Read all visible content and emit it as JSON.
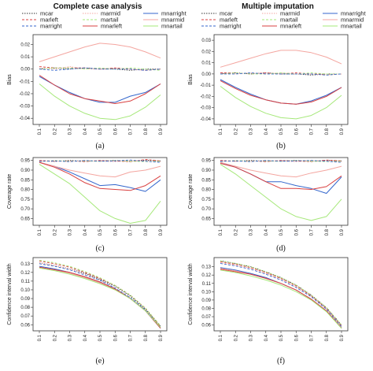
{
  "titles": [
    "Complete case analysis",
    "Multiple imputation"
  ],
  "legend": [
    {
      "name": "mcar",
      "color": "#333333",
      "dash": "1.5,1.5",
      "width": 0.9
    },
    {
      "name": "marmid",
      "color": "#f4a6a0",
      "dash": "1.5,1.5",
      "width": 0.9
    },
    {
      "name": "mnarright",
      "color": "#3366cc",
      "dash": "",
      "width": 1.0
    },
    {
      "name": "marleft",
      "color": "#d94040",
      "dash": "3,2",
      "width": 0.9
    },
    {
      "name": "martail",
      "color": "#a6e87a",
      "dash": "3,2",
      "width": 0.9
    },
    {
      "name": "mnarmid",
      "color": "#f4a6a0",
      "dash": "",
      "width": 1.0
    },
    {
      "name": "marright",
      "color": "#3366cc",
      "dash": "3,2",
      "width": 0.9
    },
    {
      "name": "mnarleft",
      "color": "#d94040",
      "dash": "",
      "width": 1.0
    },
    {
      "name": "mnartail",
      "color": "#a6e87a",
      "dash": "",
      "width": 1.0
    }
  ],
  "chart_data": [
    {
      "panel": "(a)",
      "type": "line",
      "ylabel": "Bias",
      "x": [
        0.1,
        0.2,
        0.3,
        0.4,
        0.5,
        0.6,
        0.7,
        0.8,
        0.9
      ],
      "xticks": [
        "0.1",
        "0.2",
        "0.3",
        "0.4",
        "0.5",
        "0.6",
        "0.7",
        "0.8",
        "0.9"
      ],
      "ylim": [
        -0.045,
        0.028
      ],
      "yticks": [
        "0.02",
        "0.01",
        "0.00",
        "-0.01",
        "-0.02",
        "-0.03",
        "-0.04"
      ],
      "series": [
        {
          "name": "mcar",
          "values": [
            0.0,
            0.001,
            0.0,
            0.001,
            0.0,
            0.0,
            -0.001,
            0.0,
            0.0
          ]
        },
        {
          "name": "marmid",
          "values": [
            0.001,
            0.0,
            0.002,
            0.0,
            0.0,
            0.001,
            0.0,
            -0.001,
            0.0
          ]
        },
        {
          "name": "mnarright",
          "values": [
            -0.006,
            -0.013,
            -0.019,
            -0.024,
            -0.027,
            -0.027,
            -0.022,
            -0.019,
            -0.012
          ]
        },
        {
          "name": "marleft",
          "values": [
            0.002,
            0.001,
            0.001,
            0.001,
            0.0,
            0.001,
            0.0,
            -0.001,
            0.0
          ]
        },
        {
          "name": "martail",
          "values": [
            0.0,
            0.001,
            0.001,
            0.0,
            0.001,
            0.0,
            0.001,
            0.0,
            -0.001
          ]
        },
        {
          "name": "mnarmid",
          "values": [
            0.006,
            0.01,
            0.014,
            0.018,
            0.021,
            0.02,
            0.018,
            0.014,
            0.009
          ]
        },
        {
          "name": "marright",
          "values": [
            0.0,
            -0.001,
            0.0,
            0.001,
            0.0,
            0.0,
            0.0,
            -0.001,
            0.0
          ]
        },
        {
          "name": "mnarleft",
          "values": [
            -0.005,
            -0.013,
            -0.02,
            -0.024,
            -0.026,
            -0.028,
            -0.026,
            -0.02,
            -0.012
          ]
        },
        {
          "name": "mnartail",
          "values": [
            -0.012,
            -0.022,
            -0.03,
            -0.036,
            -0.04,
            -0.041,
            -0.038,
            -0.031,
            -0.021
          ]
        }
      ]
    },
    {
      "panel": "(b)",
      "type": "line",
      "ylabel": "Bias",
      "x": [
        0.1,
        0.2,
        0.3,
        0.4,
        0.5,
        0.6,
        0.7,
        0.8,
        0.9
      ],
      "xticks": [
        "0.1",
        "0.2",
        "0.3",
        "0.4",
        "0.5",
        "0.6",
        "0.7",
        "0.8",
        "0.9"
      ],
      "ylim": [
        -0.045,
        0.035
      ],
      "yticks": [
        "0.03",
        "0.02",
        "0.01",
        "0.00",
        "-0.01",
        "-0.02",
        "-0.03",
        "-0.04"
      ],
      "series": [
        {
          "name": "mcar",
          "values": [
            0.0,
            0.001,
            0.0,
            0.001,
            0.0,
            0.0,
            -0.001,
            0.0,
            0.0
          ]
        },
        {
          "name": "marmid",
          "values": [
            0.001,
            0.0,
            0.001,
            0.0,
            0.001,
            0.0,
            0.0,
            -0.001,
            0.0
          ]
        },
        {
          "name": "mnarright",
          "values": [
            -0.005,
            -0.012,
            -0.018,
            -0.023,
            -0.026,
            -0.027,
            -0.024,
            -0.019,
            -0.012
          ]
        },
        {
          "name": "marleft",
          "values": [
            0.001,
            0.001,
            0.0,
            0.001,
            0.0,
            0.001,
            0.0,
            0.0,
            0.0
          ]
        },
        {
          "name": "martail",
          "values": [
            0.0,
            0.001,
            0.0,
            0.0,
            0.001,
            0.0,
            0.001,
            0.0,
            0.0
          ]
        },
        {
          "name": "mnarmid",
          "values": [
            0.006,
            0.01,
            0.014,
            0.018,
            0.021,
            0.021,
            0.019,
            0.015,
            0.009
          ]
        },
        {
          "name": "marright",
          "values": [
            0.0,
            0.0,
            0.001,
            0.0,
            0.0,
            0.0,
            0.0,
            -0.001,
            0.0
          ]
        },
        {
          "name": "mnarleft",
          "values": [
            -0.006,
            -0.013,
            -0.019,
            -0.023,
            -0.026,
            -0.027,
            -0.025,
            -0.02,
            -0.012
          ]
        },
        {
          "name": "mnartail",
          "values": [
            -0.011,
            -0.021,
            -0.029,
            -0.035,
            -0.039,
            -0.04,
            -0.037,
            -0.03,
            -0.019
          ]
        }
      ]
    },
    {
      "panel": "(c)",
      "type": "line",
      "ylabel": "Coverage rate",
      "x": [
        0.1,
        0.2,
        0.3,
        0.4,
        0.5,
        0.6,
        0.7,
        0.8,
        0.9
      ],
      "xticks": [
        "0.1",
        "0.2",
        "0.3",
        "0.4",
        "0.5",
        "0.6",
        "0.7",
        "0.8",
        "0.9"
      ],
      "ylim": [
        0.615,
        0.965
      ],
      "yticks": [
        "0.95",
        "0.90",
        "0.85",
        "0.80",
        "0.75",
        "0.70",
        "0.65"
      ],
      "series": [
        {
          "name": "mcar",
          "values": [
            0.948,
            0.945,
            0.95,
            0.946,
            0.948,
            0.95,
            0.945,
            0.951,
            0.948
          ]
        },
        {
          "name": "marmid",
          "values": [
            0.946,
            0.948,
            0.944,
            0.95,
            0.946,
            0.944,
            0.95,
            0.946,
            0.944
          ]
        },
        {
          "name": "mnarright",
          "values": [
            0.94,
            0.92,
            0.89,
            0.855,
            0.82,
            0.825,
            0.81,
            0.79,
            0.85
          ]
        },
        {
          "name": "marleft",
          "values": [
            0.95,
            0.946,
            0.948,
            0.944,
            0.95,
            0.947,
            0.944,
            0.955,
            0.948
          ]
        },
        {
          "name": "martail",
          "values": [
            0.944,
            0.95,
            0.946,
            0.948,
            0.945,
            0.95,
            0.946,
            0.944,
            0.946
          ]
        },
        {
          "name": "mnarmid",
          "values": [
            0.94,
            0.92,
            0.9,
            0.885,
            0.87,
            0.865,
            0.89,
            0.9,
            0.92
          ]
        },
        {
          "name": "marright",
          "values": [
            0.945,
            0.948,
            0.944,
            0.95,
            0.946,
            0.948,
            0.952,
            0.946,
            0.94
          ]
        },
        {
          "name": "mnarleft",
          "values": [
            0.94,
            0.915,
            0.88,
            0.835,
            0.805,
            0.8,
            0.795,
            0.82,
            0.87
          ]
        },
        {
          "name": "mnartail",
          "values": [
            0.93,
            0.88,
            0.83,
            0.76,
            0.69,
            0.65,
            0.625,
            0.64,
            0.74
          ]
        }
      ]
    },
    {
      "panel": "(d)",
      "type": "line",
      "ylabel": "Coverage rate",
      "x": [
        0.1,
        0.2,
        0.3,
        0.4,
        0.5,
        0.6,
        0.7,
        0.8,
        0.9
      ],
      "xticks": [
        "0.1",
        "0.2",
        "0.3",
        "0.4",
        "0.5",
        "0.6",
        "0.7",
        "0.8",
        "0.9"
      ],
      "ylim": [
        0.615,
        0.965
      ],
      "yticks": [
        "0.95",
        "0.90",
        "0.85",
        "0.80",
        "0.75",
        "0.70",
        "0.65"
      ],
      "series": [
        {
          "name": "mcar",
          "values": [
            0.948,
            0.946,
            0.95,
            0.946,
            0.948,
            0.95,
            0.946,
            0.95,
            0.948
          ]
        },
        {
          "name": "marmid",
          "values": [
            0.946,
            0.948,
            0.944,
            0.95,
            0.946,
            0.944,
            0.95,
            0.946,
            0.944
          ]
        },
        {
          "name": "mnarright",
          "values": [
            0.94,
            0.915,
            0.88,
            0.84,
            0.84,
            0.82,
            0.805,
            0.78,
            0.865
          ]
        },
        {
          "name": "marleft",
          "values": [
            0.95,
            0.946,
            0.948,
            0.944,
            0.95,
            0.947,
            0.944,
            0.952,
            0.948
          ]
        },
        {
          "name": "martail",
          "values": [
            0.944,
            0.95,
            0.946,
            0.948,
            0.945,
            0.95,
            0.946,
            0.944,
            0.946
          ]
        },
        {
          "name": "mnarmid",
          "values": [
            0.94,
            0.92,
            0.9,
            0.885,
            0.87,
            0.865,
            0.885,
            0.9,
            0.92
          ]
        },
        {
          "name": "marright",
          "values": [
            0.945,
            0.948,
            0.944,
            0.95,
            0.946,
            0.948,
            0.95,
            0.946,
            0.94
          ]
        },
        {
          "name": "mnarleft",
          "values": [
            0.935,
            0.915,
            0.88,
            0.84,
            0.805,
            0.805,
            0.8,
            0.815,
            0.87
          ]
        },
        {
          "name": "mnartail",
          "values": [
            0.93,
            0.88,
            0.82,
            0.76,
            0.7,
            0.66,
            0.64,
            0.66,
            0.75
          ]
        }
      ]
    },
    {
      "panel": "(e)",
      "type": "line",
      "ylabel": "Confidence interval width",
      "x": [
        0.1,
        0.2,
        0.3,
        0.4,
        0.5,
        0.6,
        0.7,
        0.8,
        0.9
      ],
      "xticks": [
        "0.1",
        "0.2",
        "0.3",
        "0.4",
        "0.5",
        "0.6",
        "0.7",
        "0.8",
        "0.9"
      ],
      "ylim": [
        0.053,
        0.137
      ],
      "yticks": [
        "0.13",
        "0.12",
        "0.11",
        "0.10",
        "0.09",
        "0.08",
        "0.07",
        "0.06"
      ],
      "series": [
        {
          "name": "mcar",
          "values": [
            0.131,
            0.128,
            0.124,
            0.119,
            0.112,
            0.104,
            0.093,
            0.078,
            0.058
          ]
        },
        {
          "name": "marmid",
          "values": [
            0.131,
            0.128,
            0.124,
            0.118,
            0.111,
            0.102,
            0.091,
            0.077,
            0.057
          ]
        },
        {
          "name": "mnarright",
          "values": [
            0.127,
            0.124,
            0.12,
            0.115,
            0.109,
            0.101,
            0.09,
            0.076,
            0.056
          ]
        },
        {
          "name": "marleft",
          "values": [
            0.133,
            0.13,
            0.126,
            0.12,
            0.113,
            0.105,
            0.094,
            0.079,
            0.058
          ]
        },
        {
          "name": "martail",
          "values": [
            0.134,
            0.131,
            0.127,
            0.121,
            0.114,
            0.105,
            0.094,
            0.079,
            0.059
          ]
        },
        {
          "name": "mnarmid",
          "values": [
            0.126,
            0.123,
            0.119,
            0.114,
            0.108,
            0.1,
            0.09,
            0.076,
            0.057
          ]
        },
        {
          "name": "marright",
          "values": [
            0.13,
            0.127,
            0.123,
            0.117,
            0.111,
            0.102,
            0.091,
            0.077,
            0.057
          ]
        },
        {
          "name": "mnarleft",
          "values": [
            0.126,
            0.123,
            0.12,
            0.115,
            0.109,
            0.101,
            0.09,
            0.076,
            0.056
          ]
        },
        {
          "name": "mnartail",
          "values": [
            0.125,
            0.122,
            0.118,
            0.113,
            0.107,
            0.1,
            0.09,
            0.076,
            0.057
          ]
        }
      ]
    },
    {
      "panel": "(f)",
      "type": "line",
      "ylabel": "Confidence interval width",
      "x": [
        0.1,
        0.2,
        0.3,
        0.4,
        0.5,
        0.6,
        0.7,
        0.8,
        0.9
      ],
      "xticks": [
        "0.1",
        "0.2",
        "0.3",
        "0.4",
        "0.5",
        "0.6",
        "0.7",
        "0.8",
        "0.9"
      ],
      "ylim": [
        0.053,
        0.141
      ],
      "yticks": [
        "0.13",
        "0.12",
        "0.11",
        "0.10",
        "0.09",
        "0.08",
        "0.07",
        "0.06"
      ],
      "series": [
        {
          "name": "mcar",
          "values": [
            0.137,
            0.134,
            0.13,
            0.124,
            0.117,
            0.108,
            0.096,
            0.081,
            0.06
          ]
        },
        {
          "name": "marmid",
          "values": [
            0.135,
            0.132,
            0.128,
            0.122,
            0.115,
            0.106,
            0.095,
            0.08,
            0.059
          ]
        },
        {
          "name": "mnarright",
          "values": [
            0.129,
            0.126,
            0.122,
            0.117,
            0.11,
            0.102,
            0.091,
            0.077,
            0.057
          ]
        },
        {
          "name": "marleft",
          "values": [
            0.136,
            0.133,
            0.129,
            0.123,
            0.116,
            0.107,
            0.095,
            0.08,
            0.059
          ]
        },
        {
          "name": "martail",
          "values": [
            0.137,
            0.134,
            0.13,
            0.124,
            0.117,
            0.108,
            0.096,
            0.081,
            0.06
          ]
        },
        {
          "name": "mnarmid",
          "values": [
            0.128,
            0.125,
            0.121,
            0.116,
            0.11,
            0.102,
            0.091,
            0.077,
            0.057
          ]
        },
        {
          "name": "marright",
          "values": [
            0.134,
            0.131,
            0.127,
            0.121,
            0.114,
            0.105,
            0.094,
            0.079,
            0.058
          ]
        },
        {
          "name": "mnarleft",
          "values": [
            0.127,
            0.124,
            0.121,
            0.116,
            0.11,
            0.102,
            0.091,
            0.077,
            0.056
          ]
        },
        {
          "name": "mnartail",
          "values": [
            0.126,
            0.123,
            0.119,
            0.114,
            0.108,
            0.1,
            0.09,
            0.076,
            0.056
          ]
        }
      ]
    }
  ]
}
